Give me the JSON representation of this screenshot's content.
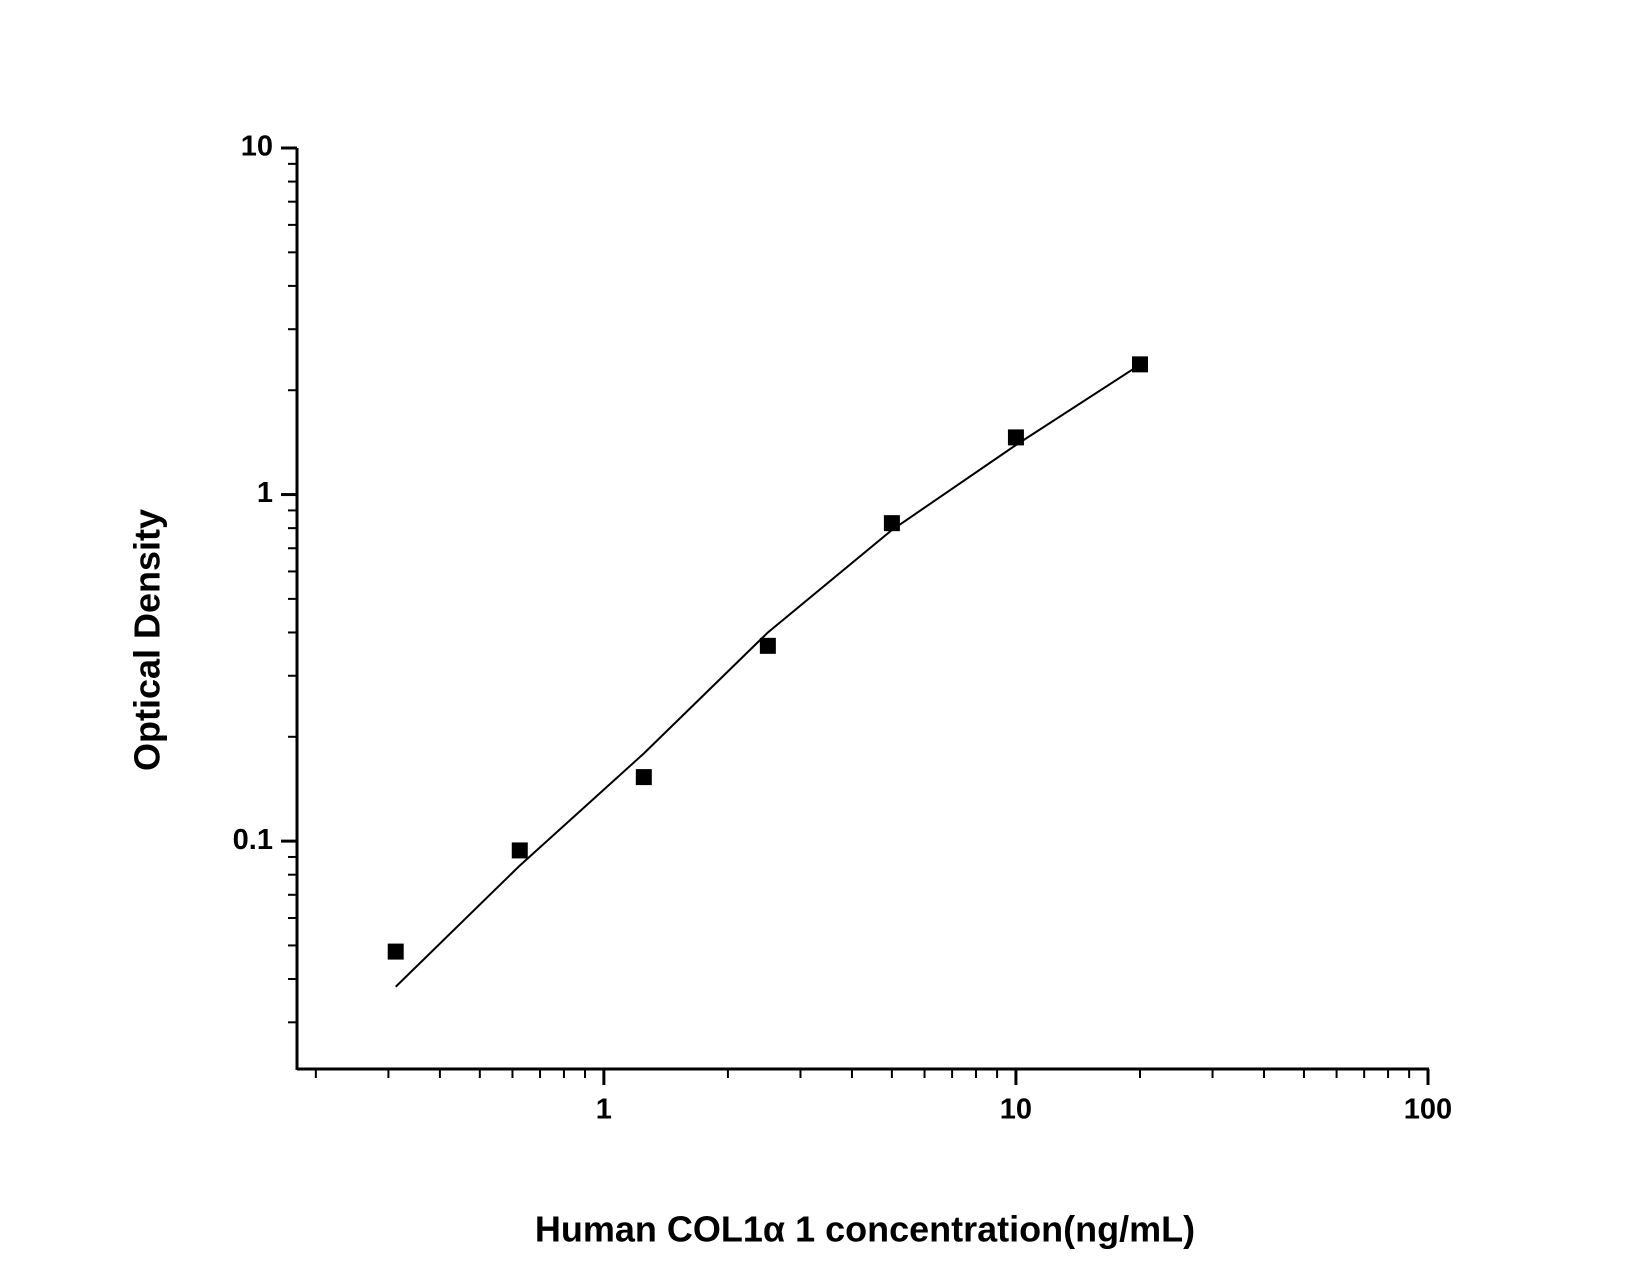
{
  "chart_data": {
    "type": "scatter",
    "x_label": "Human COL1α 1 concentration(ng/mL)",
    "y_label": "Optical Density",
    "log_x": true,
    "log_y": true,
    "xlim": [
      0.18,
      100
    ],
    "ylim": [
      0.022,
      10
    ],
    "xticks": [
      1,
      10,
      100
    ],
    "yticks": [
      0.1,
      1,
      10
    ],
    "xminorticks": [
      0.2,
      0.3,
      0.4,
      0.5,
      0.6,
      0.7,
      0.8,
      0.9,
      2,
      3,
      4,
      5,
      6,
      7,
      8,
      9,
      20,
      30,
      40,
      50,
      60,
      70,
      80,
      90
    ],
    "yminorticks": [
      0.03,
      0.04,
      0.05,
      0.06,
      0.07,
      0.08,
      0.09,
      0.2,
      0.3,
      0.4,
      0.5,
      0.6,
      0.7,
      0.8,
      0.9,
      2,
      3,
      4,
      5,
      6,
      7,
      8,
      9
    ],
    "series": [
      {
        "kind": "points",
        "color": "#000000",
        "x": [
          0.3125,
          0.625,
          1.25,
          2.5,
          5,
          10,
          20
        ],
        "values": [
          0.048,
          0.094,
          0.153,
          0.366,
          0.827,
          1.462,
          2.375
        ]
      },
      {
        "kind": "fit",
        "color": "#000000",
        "x": [
          0.3125,
          0.625,
          1.25,
          2.5,
          5,
          10,
          20
        ],
        "values": [
          0.038,
          0.085,
          0.179,
          0.4,
          0.79,
          1.39,
          2.37
        ]
      }
    ]
  }
}
